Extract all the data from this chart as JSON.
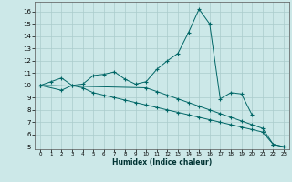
{
  "xlabel": "Humidex (Indice chaleur)",
  "bg_color": "#cce8e8",
  "grid_color": "#aacccc",
  "line_color": "#006666",
  "xlim": [
    -0.5,
    23.5
  ],
  "ylim": [
    4.8,
    16.8
  ],
  "yticks": [
    5,
    6,
    7,
    8,
    9,
    10,
    11,
    12,
    13,
    14,
    15,
    16
  ],
  "xticks": [
    0,
    1,
    2,
    3,
    4,
    5,
    6,
    7,
    8,
    9,
    10,
    11,
    12,
    13,
    14,
    15,
    16,
    17,
    18,
    19,
    20,
    21,
    22,
    23
  ],
  "line1_x": [
    0,
    1,
    2,
    3,
    4,
    5,
    6,
    7,
    8,
    9,
    10,
    11,
    12,
    13,
    14,
    15,
    16,
    17,
    18,
    19,
    20
  ],
  "line1_y": [
    10.0,
    10.3,
    10.6,
    10.0,
    10.1,
    10.8,
    10.9,
    11.1,
    10.5,
    10.1,
    10.3,
    11.3,
    12.0,
    12.6,
    14.3,
    16.2,
    15.0,
    8.9,
    9.4,
    9.3,
    7.6
  ],
  "line2_x": [
    0,
    2,
    3,
    4,
    5,
    6,
    7,
    8,
    9,
    10,
    11,
    12,
    13,
    14,
    15,
    16,
    17,
    18,
    19,
    20,
    21,
    22,
    23
  ],
  "line2_y": [
    10.0,
    9.6,
    10.0,
    9.8,
    9.4,
    9.2,
    9.0,
    8.8,
    8.6,
    8.4,
    8.2,
    8.0,
    7.8,
    7.6,
    7.4,
    7.2,
    7.0,
    6.8,
    6.6,
    6.4,
    6.2,
    5.2,
    5.0
  ],
  "line3_x": [
    0,
    10,
    11,
    12,
    13,
    14,
    15,
    16,
    17,
    18,
    19,
    20,
    21,
    22,
    23
  ],
  "line3_y": [
    10.0,
    9.8,
    9.5,
    9.2,
    8.9,
    8.6,
    8.3,
    8.0,
    7.7,
    7.4,
    7.1,
    6.8,
    6.5,
    5.2,
    5.0
  ]
}
